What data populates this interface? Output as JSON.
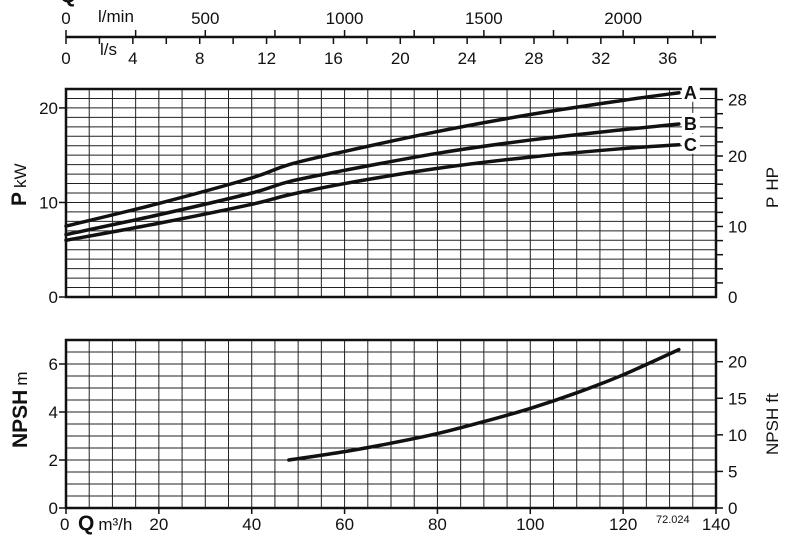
{
  "scales": {
    "flow_lpm": {
      "symbol": "Q",
      "unit": "l/min",
      "ticks": [
        "0",
        "500",
        "1000",
        "1500",
        "2000"
      ]
    },
    "flow_ls": {
      "unit": "l/s",
      "ticks": [
        "0",
        "4",
        "8",
        "12",
        "16",
        "20",
        "24",
        "28",
        "32",
        "36"
      ]
    }
  },
  "chart_data": [
    {
      "type": "line",
      "y_label_symbol": "P",
      "y_label_unit": "kW",
      "y2_label_symbol": "P",
      "y2_label_unit": "HP",
      "xlim": [
        0,
        140
      ],
      "ylim": [
        0,
        22
      ],
      "y_ticks": [
        "0",
        "10",
        "20"
      ],
      "y2_ticks": [
        "0",
        "10",
        "20",
        "28"
      ],
      "grid": true,
      "series": [
        {
          "name": "A",
          "x": [
            0,
            20,
            40,
            48,
            60,
            80,
            100,
            120,
            132
          ],
          "y": [
            7.5,
            9.9,
            12.6,
            14.0,
            15.4,
            17.5,
            19.3,
            20.8,
            21.6
          ]
        },
        {
          "name": "B",
          "x": [
            0,
            20,
            40,
            48,
            60,
            80,
            100,
            120,
            132
          ],
          "y": [
            6.6,
            8.7,
            11.0,
            12.2,
            13.4,
            15.2,
            16.6,
            17.7,
            18.3
          ]
        },
        {
          "name": "C",
          "x": [
            0,
            20,
            40,
            48,
            60,
            80,
            100,
            120,
            132
          ],
          "y": [
            6.0,
            7.8,
            9.8,
            10.8,
            12.0,
            13.6,
            14.8,
            15.7,
            16.1
          ]
        }
      ]
    },
    {
      "type": "line",
      "y_label_symbol": "NPSH",
      "y_label_unit": "m",
      "y2_label_symbol": "NPSH",
      "y2_label_unit": "ft",
      "x_label_symbol": "Q",
      "x_label_unit": "m³/h",
      "xlim": [
        0,
        140
      ],
      "ylim": [
        0,
        7
      ],
      "x_ticks": [
        "0",
        "20",
        "40",
        "60",
        "80",
        "100",
        "120",
        "140"
      ],
      "y_ticks": [
        "0",
        "2",
        "4",
        "6"
      ],
      "y2_ticks": [
        "0",
        "5",
        "10",
        "15",
        "20"
      ],
      "grid": true,
      "series": [
        {
          "x": [
            48,
            60,
            70,
            80,
            90,
            100,
            110,
            120,
            132
          ],
          "y": [
            2.0,
            2.35,
            2.7,
            3.1,
            3.6,
            4.15,
            4.8,
            5.55,
            6.6
          ]
        }
      ]
    }
  ],
  "figure_code": "72.024"
}
